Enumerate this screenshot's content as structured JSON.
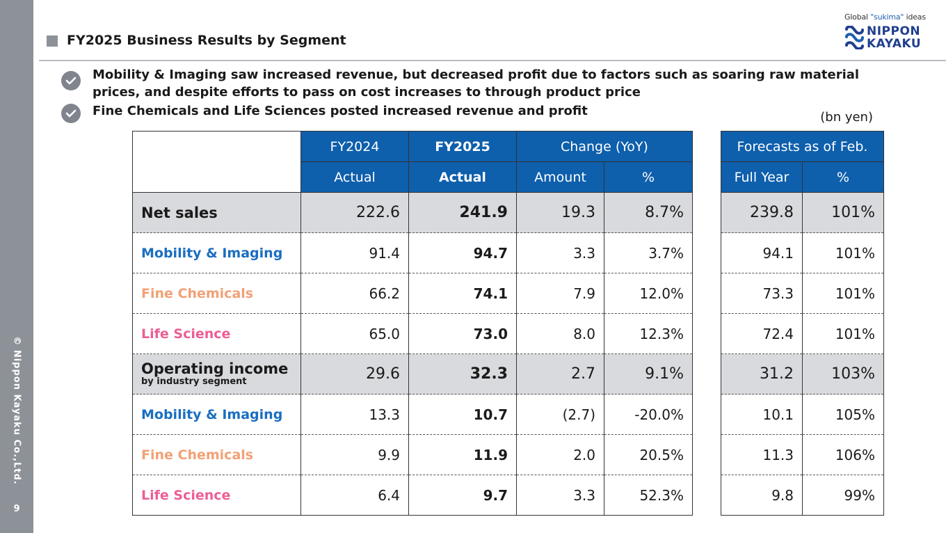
{
  "sidebar": {
    "copyright": "© Nippon Kayaku Co.,Ltd.",
    "page_number": "9"
  },
  "header": {
    "title": "FY2025 Business Results by Segment"
  },
  "logo": {
    "tagline_prefix": "Global ",
    "tagline_highlight": "\"sukima\"",
    "tagline_suffix": " ideas",
    "word1": "NIPPON",
    "word2": "KAYAKU",
    "colors": {
      "brand_blue": "#1f3f8f",
      "accent_blue": "#1f5fb3"
    }
  },
  "bullets": [
    {
      "icon": "check-icon",
      "text": "Mobility & Imaging saw increased revenue, but decreased profit due to factors such as soaring raw material prices, and despite efforts to pass on cost increases to through product price"
    },
    {
      "icon": "check-icon",
      "text": "Fine Chemicals and Life Sciences posted increased revenue and profit"
    }
  ],
  "unit": "(bn yen)",
  "table": {
    "headers": {
      "fy2024": "FY2024",
      "fy2025": "FY2025",
      "change": "Change (YoY)",
      "forecast": "Forecasts as of Feb.",
      "actual1": "Actual",
      "actual2": "Actual",
      "amount": "Amount",
      "pct": "%",
      "full_year": "Full Year",
      "fc_pct": "%"
    },
    "rows": [
      {
        "label": "Net sales",
        "fy2024": "222.6",
        "fy2025": "241.9",
        "amount": "19.3",
        "pct": "8.7%",
        "full_year": "239.8",
        "fc_pct": "101%"
      },
      {
        "label": "Mobility & Imaging",
        "fy2024": "91.4",
        "fy2025": "94.7",
        "amount": "3.3",
        "pct": "3.7%",
        "full_year": "94.1",
        "fc_pct": "101%"
      },
      {
        "label": "Fine Chemicals",
        "fy2024": "66.2",
        "fy2025": "74.1",
        "amount": "7.9",
        "pct": "12.0%",
        "full_year": "73.3",
        "fc_pct": "101%"
      },
      {
        "label": "Life Science",
        "fy2024": "65.0",
        "fy2025": "73.0",
        "amount": "8.0",
        "pct": "12.3%",
        "full_year": "72.4",
        "fc_pct": "101%"
      },
      {
        "label": "Operating income",
        "sublabel": "by industry segment",
        "fy2024": "29.6",
        "fy2025": "32.3",
        "amount": "2.7",
        "pct": "9.1%",
        "full_year": "31.2",
        "fc_pct": "103%"
      },
      {
        "label": "Mobility & Imaging",
        "fy2024": "13.3",
        "fy2025": "10.7",
        "amount": "(2.7)",
        "pct": "-20.0%",
        "full_year": "10.1",
        "fc_pct": "105%"
      },
      {
        "label": "Fine Chemicals",
        "fy2024": "9.9",
        "fy2025": "11.9",
        "amount": "2.0",
        "pct": "20.5%",
        "full_year": "11.3",
        "fc_pct": "106%"
      },
      {
        "label": "Life Science",
        "fy2024": "6.4",
        "fy2025": "9.7",
        "amount": "3.3",
        "pct": "52.3%",
        "full_year": "9.8",
        "fc_pct": "99%"
      }
    ],
    "colors": {
      "header_blue": "#0e5fac",
      "highlight_gray": "#d9dadd",
      "mobility": "#1a6ec0",
      "fine_chemicals": "#f1a176",
      "life_science": "#ec5e95"
    }
  }
}
